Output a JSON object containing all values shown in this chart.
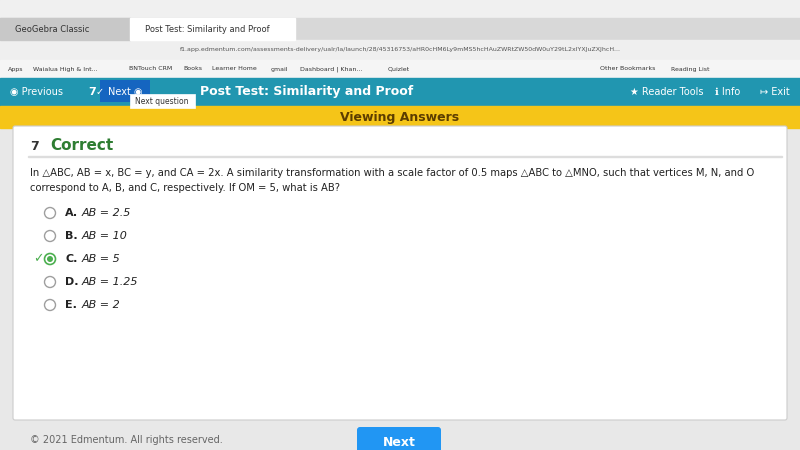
{
  "browser_tab1": "GeoGebra Classic",
  "browser_tab2": "Post Test: Similarity and Proof",
  "url": "f1.app.edmentum.com/assessments-delivery/ualr/la/launch/28/45316753/aHR0cHM6Ly9mMS5hcHAuZWRtZW50dW0uY29tL2xlYXJuZXJhcH...",
  "nav_title": "Post Test: Similarity and Proof",
  "nav_bg": "#2196B0",
  "banner_text": "Viewing Answers",
  "banner_bg": "#F5C518",
  "question_num": "7",
  "correct_label": "Correct",
  "correct_color": "#2E7D32",
  "question_text_line1": "In △ABC, AB = x, BC = y, and CA = 2x. A similarity transformation with a scale factor of 0.5 maps △ABC to △MNO, such that vertices M, N, and O",
  "question_text_line2": "correspond to A, B, and C, respectively. If OM = 5, what is AB?",
  "options": [
    {
      "letter": "A.",
      "text": "AB = 2.5",
      "correct": false
    },
    {
      "letter": "B.",
      "text": "AB = 10",
      "correct": false
    },
    {
      "letter": "C.",
      "text": "AB = 5",
      "correct": true
    },
    {
      "letter": "D.",
      "text": "AB = 1.25",
      "correct": false
    },
    {
      "letter": "E.",
      "text": "AB = 2",
      "correct": false
    }
  ],
  "next_button_text": "Next",
  "next_button_color": "#2196F3",
  "footer_text": "© 2021 Edmentum. All rights reserved.",
  "bg_color": "#E8E8E8",
  "card_color": "#FFFFFF",
  "checkmark_color": "#4CAF50",
  "radio_border": "#9E9E9E"
}
